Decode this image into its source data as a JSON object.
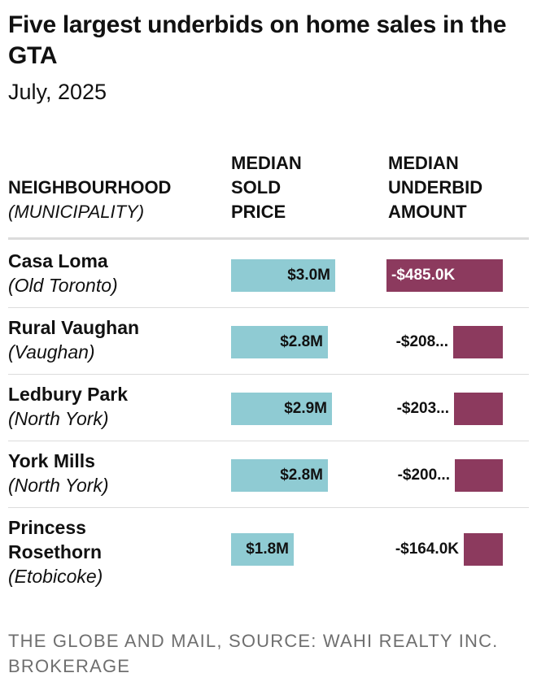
{
  "chart_data": {
    "type": "table",
    "title": "Five largest underbids on home sales in the GTA",
    "subtitle": "July, 2025",
    "columns": {
      "neighbourhood": {
        "line1": "NEIGHBOURHOOD",
        "line2": "(MUNICIPALITY)"
      },
      "price": {
        "line1": "MEDIAN",
        "line2": "SOLD",
        "line3": "PRICE"
      },
      "underbid": {
        "line1": "MEDIAN",
        "line2": "UNDERBID",
        "line3": "AMOUNT"
      }
    },
    "rows": [
      {
        "name": "Casa Loma",
        "municipality": "(Old Toronto)",
        "price": 3.0,
        "price_label": "$3.0M",
        "underbid": 485.0,
        "underbid_label": "-$485.0K"
      },
      {
        "name": "Rural Vaughan",
        "municipality": "(Vaughan)",
        "price": 2.8,
        "price_label": "$2.8M",
        "underbid": 208.0,
        "underbid_label": "-$208..."
      },
      {
        "name": "Ledbury Park",
        "municipality": "(North York)",
        "price": 2.9,
        "price_label": "$2.9M",
        "underbid": 203.0,
        "underbid_label": "-$203..."
      },
      {
        "name": "York Mills",
        "municipality": "(North York)",
        "price": 2.8,
        "price_label": "$2.8M",
        "underbid": 200.0,
        "underbid_label": "-$200..."
      },
      {
        "name": "Princess Rosethorn",
        "name_lines": [
          "Princess",
          "Rosethorn"
        ],
        "municipality": "(Etobicoke)",
        "price": 1.8,
        "price_label": "$1.8M",
        "underbid": 164.0,
        "underbid_label": "-$164.0K"
      }
    ],
    "price_max": 3.0,
    "underbid_max": 485.0,
    "colors": {
      "price_bar": "#8fcbd3",
      "underbid_bar": "#8c3a5e",
      "underbid_label_inside": "#ffffff"
    }
  },
  "footer": {
    "line1": "THE GLOBE AND MAIL, SOURCE: WAHI REALTY INC.",
    "line2": "BROKERAGE"
  }
}
